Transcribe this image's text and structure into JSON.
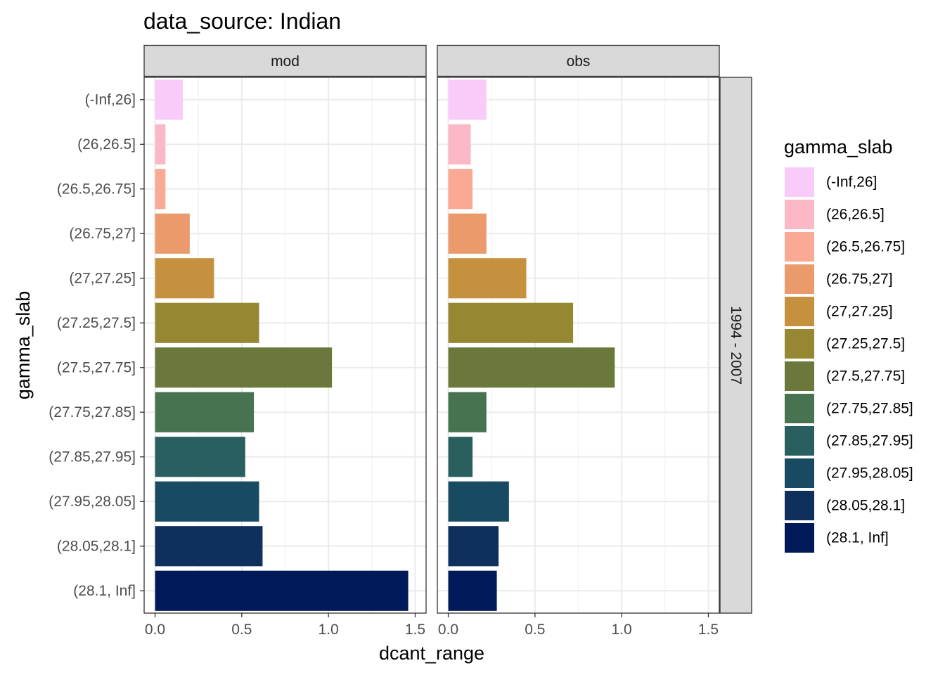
{
  "chart_data": {
    "type": "bar",
    "title": "data_source: Indian",
    "xlabel": "dcant_range",
    "ylabel": "gamma_slab",
    "xlim": [
      0,
      1.5
    ],
    "x_ticks": [
      "0.0",
      "0.5",
      "1.0",
      "1.5"
    ],
    "grid": true,
    "orientation": "horizontal",
    "facet_columns": [
      "mod",
      "obs"
    ],
    "facet_row_label": "1994 - 2007",
    "categories": [
      "(-Inf,26]",
      "(26,26.5]",
      "(26.5,26.75]",
      "(26.75,27]",
      "(27,27.25]",
      "(27.25,27.5]",
      "(27.5,27.75]",
      "(27.75,27.85]",
      "(27.85,27.95]",
      "(27.95,28.05]",
      "(28.05,28.1]",
      "(28.1, Inf]"
    ],
    "colors": [
      "#F9CBF9",
      "#FDB8C8",
      "#FAA995",
      "#EA9A6B",
      "#C6913F",
      "#968832",
      "#6A783C",
      "#477351",
      "#29605F",
      "#184B61",
      "#0F305D",
      "#001958"
    ],
    "series": [
      {
        "name": "mod",
        "values": [
          0.16,
          0.06,
          0.06,
          0.2,
          0.34,
          0.6,
          1.02,
          0.57,
          0.52,
          0.6,
          0.62,
          1.46
        ]
      },
      {
        "name": "obs",
        "values": [
          0.22,
          0.13,
          0.14,
          0.22,
          0.45,
          0.72,
          0.96,
          0.22,
          0.14,
          0.35,
          0.29,
          0.28
        ]
      }
    ],
    "legend": {
      "title": "gamma_slab",
      "position": "right"
    }
  }
}
